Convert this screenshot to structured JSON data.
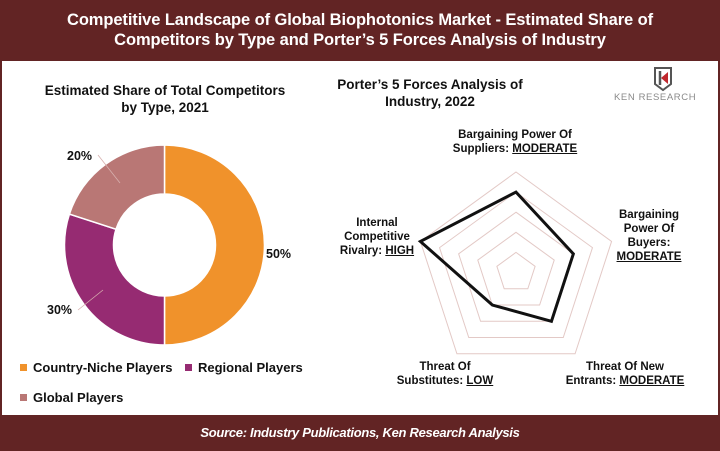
{
  "header": {
    "title_line1": "Competitive Landscape of Global Biophotonics Market - Estimated Share of",
    "title_line2": "Competitors by Type and Porter’s 5 Forces Analysis of Industry"
  },
  "footer": {
    "source": "Source: Industry Publications, Ken Research Analysis"
  },
  "logo": {
    "text": "KEN RESEARCH",
    "icon": "ken-research-logo-icon"
  },
  "colors": {
    "brand_maroon": "#622424",
    "country_niche": "#F0922B",
    "regional": "#962B72",
    "global": "#B97775",
    "radar_grid": "#E3C9C6",
    "radar_line": "#111111"
  },
  "chart_data": [
    {
      "type": "pie",
      "variant": "donut",
      "title": "Estimated Share of Total Competitors by Type, 2021",
      "title_line1": "Estimated Share of Total Competitors",
      "title_line2": "by Type, 2021",
      "categories": [
        "Country-Niche Players",
        "Regional Players",
        "Global Players"
      ],
      "values": [
        50,
        30,
        20
      ],
      "labels": [
        "50%",
        "30%",
        "20%"
      ],
      "legend_position": "bottom"
    },
    {
      "type": "radar",
      "title": "Porter’s 5 Forces Analysis of Industry, 2022",
      "title_line1": "Porter’s 5 Forces Analysis of",
      "title_line2": "Industry, 2022",
      "axes": [
        {
          "name": "Bargaining Power Of Suppliers",
          "rating": "MODERATE",
          "value": 0.8
        },
        {
          "name": "Bargaining Power Of Buyers",
          "rating": "MODERATE",
          "value": 0.6
        },
        {
          "name": "Threat Of New Entrants",
          "rating": "MODERATE",
          "value": 0.6
        },
        {
          "name": "Threat Of Substitutes",
          "rating": "LOW",
          "value": 0.4
        },
        {
          "name": "Internal Competitive Rivalry",
          "rating": "HIGH",
          "value": 1.0
        }
      ],
      "grid_rings": 5,
      "range": [
        0,
        1
      ]
    }
  ],
  "donut": {
    "pct_50": "50%",
    "pct_30": "30%",
    "pct_20": "20%"
  },
  "legend": {
    "country_niche": "Country-Niche Players",
    "regional": "Regional Players",
    "global": "Global Players"
  },
  "radar_labels": {
    "suppliers_line1": "Bargaining Power Of",
    "suppliers_line2": "Suppliers: ",
    "suppliers_rating": "MODERATE",
    "buyers_line1": "Bargaining",
    "buyers_line2": "Power Of",
    "buyers_line3": "Buyers:",
    "buyers_rating": "MODERATE",
    "entrants_line1": "Threat Of New",
    "entrants_line2": "Entrants: ",
    "entrants_rating": "MODERATE",
    "substitutes_line1": "Threat Of",
    "substitutes_line2": "Substitutes: ",
    "substitutes_rating": "LOW",
    "rivalry_line1": "Internal",
    "rivalry_line2": "Competitive",
    "rivalry_line3": "Rivalry: ",
    "rivalry_rating": "HIGH"
  }
}
